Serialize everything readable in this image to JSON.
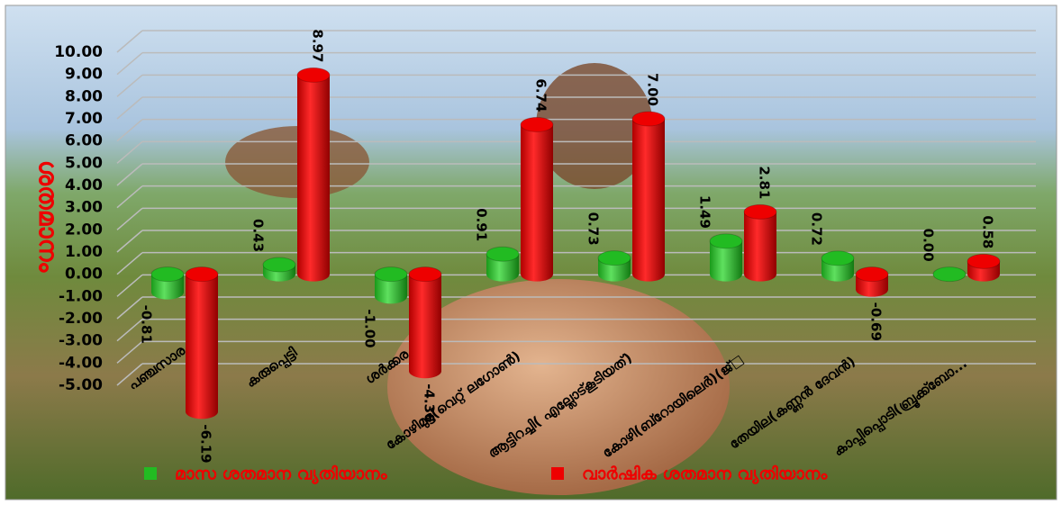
{
  "chart_data": {
    "type": "bar",
    "y_label": "ശതമാനം",
    "categories": [
      "പഞ്ചസാര",
      "കരുപ്പെട്ടി",
      "ശർക്കര",
      "കോഴിമുട്ട(വെറ്റ് ലഗോൺ)",
      "ആട്ടിറച്ചി( എല്ലോട്കൂടിയത്)",
      "കോഴി(ബ്റോയിലെർ)(ജ്□",
      "തേയില(കണ്ണൻ ദേവൻ)",
      "കാപ്പിപ്പൊടി(ബ്രൂക്ക്ബോ..."
    ],
    "series": [
      {
        "name": "മാസ ശതമാന വ്യതിയാനം",
        "color": "#22bb22",
        "values": [
          -0.81,
          0.43,
          -1.0,
          0.91,
          0.73,
          1.49,
          0.72,
          0.0
        ],
        "value_labels": [
          "-0.81",
          "0.43",
          "-1.00",
          "0.91",
          "0.73",
          "1.49",
          "0.72",
          "0.00"
        ]
      },
      {
        "name": "വാർഷിക ശതമാന വ്യതിയാനം",
        "color": "#ee0000",
        "values": [
          -6.19,
          8.97,
          -4.36,
          6.74,
          7.0,
          2.81,
          -0.69,
          0.58
        ],
        "value_labels": [
          "-6.19",
          "8.97",
          "-4.36",
          "6.74",
          "7.00",
          "2.81",
          "-0.69",
          "0.58"
        ]
      }
    ],
    "ylim": [
      -5,
      10
    ],
    "yticks": [
      {
        "value": -5,
        "label": "-5.00"
      },
      {
        "value": -4,
        "label": "-4.00"
      },
      {
        "value": -3,
        "label": "-3.00"
      },
      {
        "value": -2,
        "label": "-2.00"
      },
      {
        "value": -1,
        "label": "-1.00"
      },
      {
        "value": 0,
        "label": "0.00"
      },
      {
        "value": 1,
        "label": "1.00"
      },
      {
        "value": 2,
        "label": "2.00"
      },
      {
        "value": 3,
        "label": "3.00"
      },
      {
        "value": 4,
        "label": "4.00"
      },
      {
        "value": 5,
        "label": "5.00"
      },
      {
        "value": 6,
        "label": "6.00"
      },
      {
        "value": 7,
        "label": "7.00"
      },
      {
        "value": 8,
        "label": "8.00"
      },
      {
        "value": 9,
        "label": "9.00"
      },
      {
        "value": 10,
        "label": "10.00"
      }
    ],
    "grid": true
  }
}
